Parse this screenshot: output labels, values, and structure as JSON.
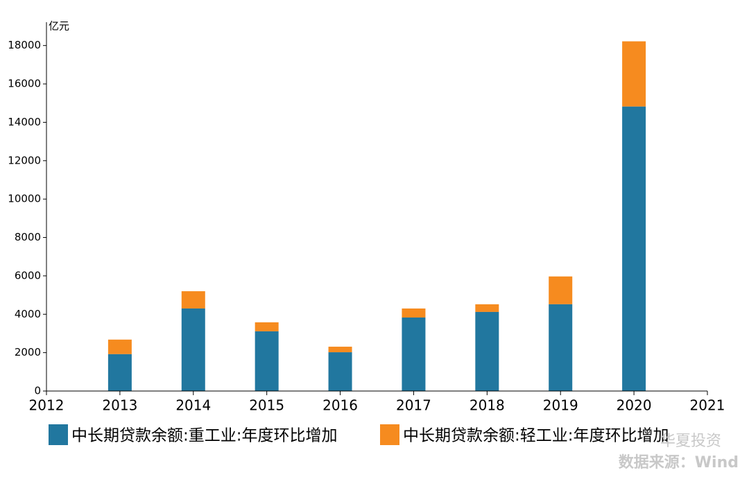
{
  "chart_data": {
    "type": "stacked_bar",
    "y_unit": "亿元",
    "x": [
      2013,
      2014,
      2015,
      2016,
      2017,
      2018,
      2019,
      2020
    ],
    "series": [
      {
        "name": "中长期贷款余额:重工业:年度环比增加",
        "color": "#21779f",
        "values": [
          1920,
          4300,
          3110,
          2020,
          3830,
          4120,
          4520,
          14820
        ]
      },
      {
        "name": "中长期贷款余额:轻工业:年度环比增加",
        "color": "#f68b1f",
        "values": [
          760,
          900,
          470,
          290,
          470,
          400,
          1450,
          3400
        ]
      }
    ],
    "xlim": [
      2012,
      2021
    ],
    "xticks": [
      2012,
      2013,
      2014,
      2015,
      2016,
      2017,
      2018,
      2019,
      2020,
      2021
    ],
    "ylim": [
      0,
      19000
    ],
    "yticks": [
      0,
      2000,
      4000,
      6000,
      8000,
      10000,
      12000,
      14000,
      16000,
      18000
    ],
    "watermark": "华夏投资",
    "source": "数据来源：Wind"
  }
}
